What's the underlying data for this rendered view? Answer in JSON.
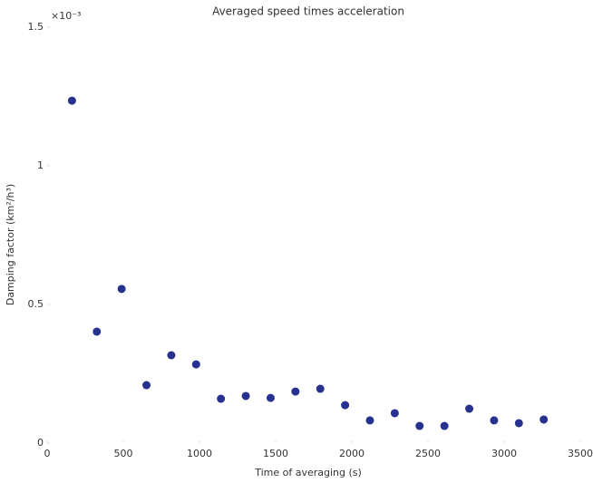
{
  "chart_data": {
    "type": "scatter",
    "title": "Averaged speed times acceleration",
    "x_label": "Time of averaging (s)",
    "y_label": "Damping factor (km²/h³)",
    "y_multiplier": "×10⁻³",
    "color": "#27318f",
    "x": [
      163,
      326,
      489,
      652,
      815,
      978,
      1141,
      1304,
      1467,
      1630,
      1793,
      1956,
      2119,
      2282,
      2445,
      2608,
      2771,
      2934,
      3097,
      3260
    ],
    "values": [
      1.235,
      0.402,
      0.556,
      0.209,
      0.317,
      0.284,
      0.16,
      0.17,
      0.163,
      0.186,
      0.196,
      0.137,
      0.082,
      0.108,
      0.062,
      0.062,
      0.124,
      0.082,
      0.072,
      0.085
    ],
    "xlim": [
      0,
      3500
    ],
    "xticks": [
      0,
      500,
      1000,
      1500,
      2000,
      2500,
      3000,
      3500
    ],
    "ylim": [
      0,
      1.5
    ],
    "yticks": [
      0,
      0.5,
      1,
      1.5
    ]
  }
}
